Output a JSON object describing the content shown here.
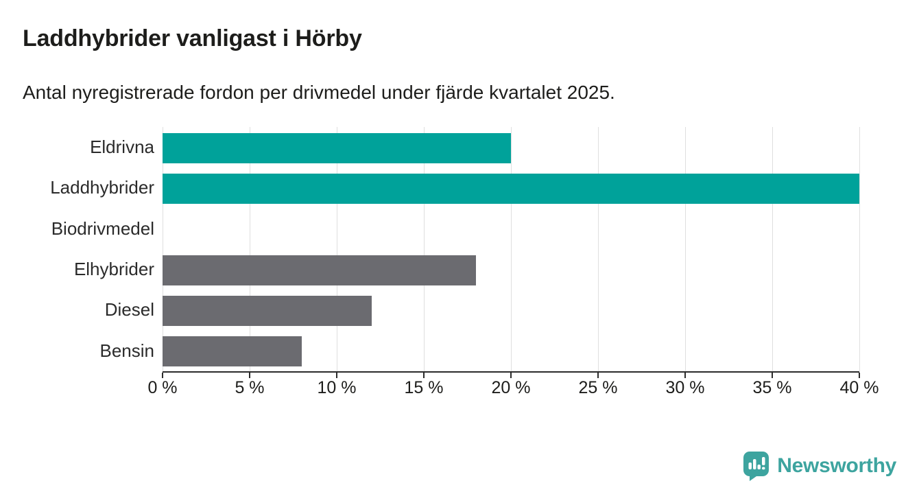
{
  "header": {
    "title": "Laddhybrider vanligast i Hörby",
    "subtitle": "Antal nyregistrerade fordon per drivmedel under fjärde kvartalet 2025."
  },
  "chart_data": {
    "type": "bar",
    "orientation": "horizontal",
    "title": "Laddhybrider vanligast i Hörby",
    "subtitle": "Antal nyregistrerade fordon per drivmedel under fjärde kvartalet 2025.",
    "categories": [
      "Eldrivna",
      "Laddhybrider",
      "Biodrivmedel",
      "Elhybrider",
      "Diesel",
      "Bensin"
    ],
    "values": [
      20,
      40,
      0,
      18,
      12,
      8
    ],
    "unit": "%",
    "xlim": [
      0,
      40
    ],
    "x_ticks": [
      0,
      5,
      10,
      15,
      20,
      25,
      30,
      35,
      40
    ],
    "x_tick_labels": [
      "0 %",
      "5 %",
      "10 %",
      "15 %",
      "20 %",
      "25 %",
      "30 %",
      "35 %",
      "40 %"
    ],
    "grid": "vertical-gridlines-at-each-tick",
    "legend": "none",
    "bar_colors": [
      "#00a29a",
      "#00a29a",
      "#00a29a",
      "#6b6b70",
      "#6b6b70",
      "#6b6b70"
    ],
    "colors": {
      "highlight": "#00a29a",
      "default": "#6b6b70",
      "gridline": "#dfdfdf",
      "axis": "#2b2b2b",
      "text": "#1d1d1b"
    }
  },
  "footer": {
    "brand": "Newsworthy",
    "brand_color": "#3da49f",
    "logo_icon": "bar-chart-speech-bubble-icon"
  }
}
